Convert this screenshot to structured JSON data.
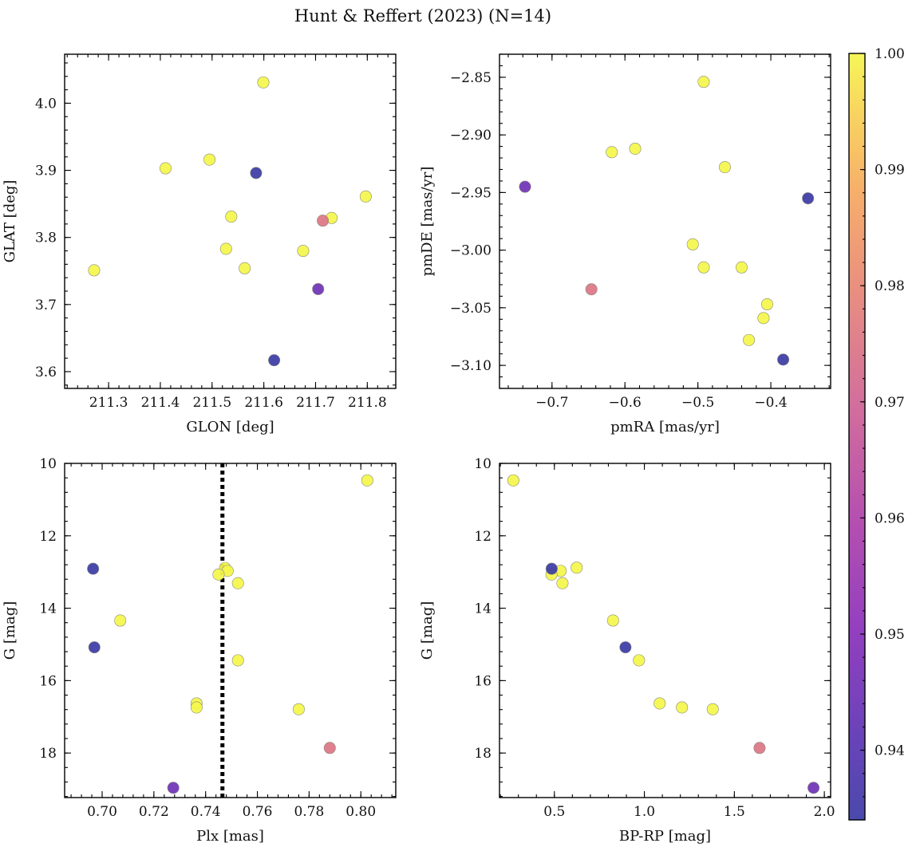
{
  "title": "Hunt & Reffert (2023) (N=14)",
  "colorbar": {
    "range": [
      0.934,
      1.0
    ],
    "ticks": [
      "0.94",
      "0.95",
      "0.96",
      "0.97",
      "0.98",
      "0.99",
      "1.00"
    ],
    "tick_values": [
      0.94,
      0.95,
      0.96,
      0.97,
      0.98,
      0.99,
      1.0
    ],
    "colormap": "plasma (alpha 0.8)"
  },
  "chart_data": [
    {
      "type": "scatter",
      "xlabel": "GLON [deg]",
      "ylabel": "GLAT [deg]",
      "xlim": [
        211.215,
        211.855
      ],
      "ylim": [
        3.575,
        4.073
      ],
      "xticks": [
        211.3,
        211.4,
        211.5,
        211.6,
        211.7,
        211.8
      ],
      "xtick_labels": [
        "211.3",
        "211.4",
        "211.5",
        "211.6",
        "211.7",
        "211.8"
      ],
      "yticks": [
        3.6,
        3.7,
        3.8,
        3.9,
        4.0
      ],
      "ytick_labels": [
        "3.6",
        "3.7",
        "3.8",
        "3.9",
        "4.0"
      ],
      "invert_y": false,
      "points": [
        {
          "x": 211.272,
          "y": 3.751,
          "c": 1.0
        },
        {
          "x": 211.41,
          "y": 3.903,
          "c": 1.0
        },
        {
          "x": 211.495,
          "y": 3.916,
          "c": 1.0
        },
        {
          "x": 211.537,
          "y": 3.831,
          "c": 1.0
        },
        {
          "x": 211.527,
          "y": 3.783,
          "c": 1.0
        },
        {
          "x": 211.563,
          "y": 3.754,
          "c": 1.0
        },
        {
          "x": 211.599,
          "y": 4.031,
          "c": 1.0
        },
        {
          "x": 211.676,
          "y": 3.78,
          "c": 1.0
        },
        {
          "x": 211.731,
          "y": 3.829,
          "c": 1.0
        },
        {
          "x": 211.797,
          "y": 3.861,
          "c": 1.0
        },
        {
          "x": 211.714,
          "y": 3.825,
          "c": 0.975
        },
        {
          "x": 211.705,
          "y": 3.723,
          "c": 0.945
        },
        {
          "x": 211.585,
          "y": 3.896,
          "c": 0.934
        },
        {
          "x": 211.62,
          "y": 3.617,
          "c": 0.934
        }
      ]
    },
    {
      "type": "scatter",
      "xlabel": "pmRA [mas/yr]",
      "ylabel": "pmDE [mas/yr]",
      "xlim": [
        -0.772,
        -0.318
      ],
      "ylim": [
        -3.12,
        -2.83
      ],
      "xticks": [
        -0.7,
        -0.6,
        -0.5,
        -0.4
      ],
      "xtick_labels": [
        "−0.7",
        "−0.6",
        "−0.5",
        "−0.4"
      ],
      "yticks": [
        -3.1,
        -3.05,
        -3.0,
        -2.95,
        -2.9,
        -2.85
      ],
      "ytick_labels": [
        "−3.10",
        "−3.05",
        "−3.00",
        "−2.95",
        "−2.90",
        "−2.85"
      ],
      "invert_y": false,
      "points": [
        {
          "x": -0.492,
          "y": -2.854,
          "c": 1.0
        },
        {
          "x": -0.618,
          "y": -2.915,
          "c": 1.0
        },
        {
          "x": -0.586,
          "y": -2.912,
          "c": 1.0
        },
        {
          "x": -0.463,
          "y": -2.928,
          "c": 1.0
        },
        {
          "x": -0.507,
          "y": -2.995,
          "c": 1.0
        },
        {
          "x": -0.492,
          "y": -3.015,
          "c": 1.0
        },
        {
          "x": -0.44,
          "y": -3.015,
          "c": 1.0
        },
        {
          "x": -0.405,
          "y": -3.047,
          "c": 1.0
        },
        {
          "x": -0.41,
          "y": -3.059,
          "c": 1.0
        },
        {
          "x": -0.43,
          "y": -3.078,
          "c": 1.0
        },
        {
          "x": -0.646,
          "y": -3.034,
          "c": 0.975
        },
        {
          "x": -0.737,
          "y": -2.945,
          "c": 0.945
        },
        {
          "x": -0.349,
          "y": -2.955,
          "c": 0.934
        },
        {
          "x": -0.383,
          "y": -3.095,
          "c": 0.934
        }
      ]
    },
    {
      "type": "scatter",
      "xlabel": "Plx [mas]",
      "ylabel": "G [mag]",
      "xlim": [
        0.6855,
        0.8135
      ],
      "ylim": [
        19.23,
        10.0
      ],
      "xticks": [
        0.7,
        0.72,
        0.74,
        0.76,
        0.78,
        0.8
      ],
      "xtick_labels": [
        "0.70",
        "0.72",
        "0.74",
        "0.76",
        "0.78",
        "0.80"
      ],
      "yticks": [
        10,
        12,
        14,
        16,
        18
      ],
      "ytick_labels": [
        "10",
        "12",
        "14",
        "16",
        "18"
      ],
      "invert_y": true,
      "vline": 0.7465,
      "points": [
        {
          "x": 0.8025,
          "y": 10.47,
          "c": 1.0
        },
        {
          "x": 0.7475,
          "y": 12.89,
          "c": 1.0
        },
        {
          "x": 0.7485,
          "y": 12.97,
          "c": 1.0
        },
        {
          "x": 0.745,
          "y": 13.07,
          "c": 1.0
        },
        {
          "x": 0.7525,
          "y": 13.31,
          "c": 1.0
        },
        {
          "x": 0.707,
          "y": 14.34,
          "c": 1.0
        },
        {
          "x": 0.7525,
          "y": 15.44,
          "c": 1.0
        },
        {
          "x": 0.7365,
          "y": 16.63,
          "c": 1.0
        },
        {
          "x": 0.7365,
          "y": 16.74,
          "c": 1.0
        },
        {
          "x": 0.776,
          "y": 16.79,
          "c": 1.0
        },
        {
          "x": 0.788,
          "y": 17.86,
          "c": 0.975
        },
        {
          "x": 0.7275,
          "y": 18.96,
          "c": 0.945
        },
        {
          "x": 0.6965,
          "y": 12.91,
          "c": 0.934
        },
        {
          "x": 0.697,
          "y": 15.08,
          "c": 0.934
        }
      ]
    },
    {
      "type": "scatter",
      "xlabel": "BP-RP [mag]",
      "ylabel": "G [mag]",
      "xlim": [
        0.195,
        2.035
      ],
      "ylim": [
        19.23,
        10.0
      ],
      "xticks": [
        0.5,
        1.0,
        1.5,
        2.0
      ],
      "xtick_labels": [
        "0.5",
        "1.0",
        "1.5",
        "2.0"
      ],
      "yticks": [
        10,
        12,
        14,
        16,
        18
      ],
      "ytick_labels": [
        "10",
        "12",
        "14",
        "16",
        "18"
      ],
      "invert_y": true,
      "points": [
        {
          "x": 0.272,
          "y": 10.47,
          "c": 1.0
        },
        {
          "x": 0.624,
          "y": 12.88,
          "c": 1.0
        },
        {
          "x": 0.535,
          "y": 12.97,
          "c": 1.0
        },
        {
          "x": 0.484,
          "y": 13.07,
          "c": 1.0
        },
        {
          "x": 0.545,
          "y": 13.31,
          "c": 1.0
        },
        {
          "x": 0.826,
          "y": 14.34,
          "c": 1.0
        },
        {
          "x": 0.97,
          "y": 15.44,
          "c": 1.0
        },
        {
          "x": 1.085,
          "y": 16.63,
          "c": 1.0
        },
        {
          "x": 1.209,
          "y": 16.74,
          "c": 1.0
        },
        {
          "x": 1.38,
          "y": 16.79,
          "c": 1.0
        },
        {
          "x": 1.64,
          "y": 17.86,
          "c": 0.975
        },
        {
          "x": 1.94,
          "y": 18.96,
          "c": 0.945
        },
        {
          "x": 0.485,
          "y": 12.91,
          "c": 0.934
        },
        {
          "x": 0.895,
          "y": 15.08,
          "c": 0.934
        }
      ]
    }
  ]
}
